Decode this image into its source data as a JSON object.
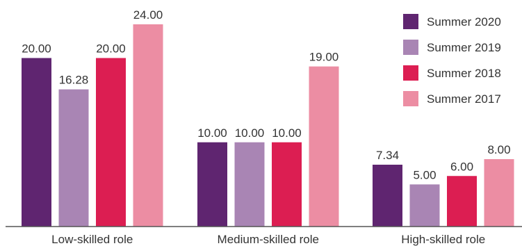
{
  "chart_data": {
    "type": "bar",
    "title": "",
    "xlabel": "",
    "ylabel": "",
    "ylim": [
      0,
      24
    ],
    "grid": false,
    "legend_position": "top-right",
    "categories": [
      "Low-skilled role",
      "Medium-skilled role",
      "High-skilled role"
    ],
    "series": [
      {
        "name": "Summer 2020",
        "color": "#5f2570",
        "values": [
          20.0,
          10.0,
          7.34
        ],
        "labels": [
          "20.00",
          "10.00",
          "7.34"
        ]
      },
      {
        "name": "Summer 2019",
        "color": "#a985b4",
        "values": [
          16.28,
          10.0,
          5.0
        ],
        "labels": [
          "16.28",
          "10.00",
          "5.00"
        ]
      },
      {
        "name": "Summer 2018",
        "color": "#dc1e52",
        "values": [
          20.0,
          10.0,
          6.0
        ],
        "labels": [
          "20.00",
          "10.00",
          "6.00"
        ]
      },
      {
        "name": "Summer 2017",
        "color": "#ec8da3",
        "values": [
          24.0,
          19.0,
          8.0
        ],
        "labels": [
          "24.00",
          "19.00",
          "8.00"
        ]
      }
    ]
  }
}
